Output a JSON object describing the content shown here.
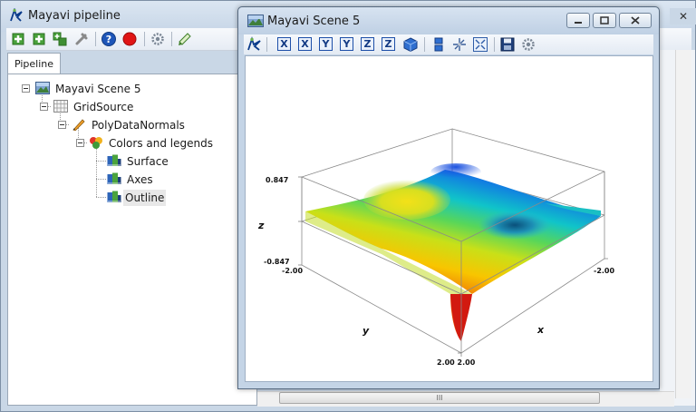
{
  "pipeline_window": {
    "title": "Mayavi pipeline",
    "close_glyph": "✕",
    "toolbar": [
      {
        "name": "add-scene-icon"
      },
      {
        "name": "add-source-icon"
      },
      {
        "name": "add-filter-icon"
      },
      {
        "name": "delete-node-icon"
      },
      {
        "name": "help-icon"
      },
      {
        "name": "record-icon"
      },
      {
        "name": "settings-icon"
      },
      {
        "name": "edit-icon"
      }
    ],
    "tab": "Pipeline",
    "tree": [
      {
        "label": "Mayavi Scene 5",
        "level": 0,
        "icon": "scene-icon"
      },
      {
        "label": "GridSource",
        "level": 1,
        "icon": "grid-source-icon"
      },
      {
        "label": "PolyDataNormals",
        "level": 2,
        "icon": "filter-icon"
      },
      {
        "label": "Colors and legends",
        "level": 3,
        "icon": "colors-legends-icon"
      },
      {
        "label": "Surface",
        "level": 4,
        "icon": "module-icon"
      },
      {
        "label": "Axes",
        "level": 4,
        "icon": "module-icon"
      },
      {
        "label": "Outline",
        "level": 4,
        "icon": "module-icon",
        "selected": true
      }
    ],
    "hscroll_grip": "III"
  },
  "scene_window": {
    "title": "Mayavi Scene 5",
    "toolbar": [
      {
        "name": "mayavi-icon"
      },
      {
        "name": "view-x-plus-button",
        "label": "X"
      },
      {
        "name": "view-x-minus-button",
        "label": "X"
      },
      {
        "name": "view-y-plus-button",
        "label": "Y"
      },
      {
        "name": "view-y-minus-button",
        "label": "Y"
      },
      {
        "name": "view-z-plus-button",
        "label": "Z"
      },
      {
        "name": "view-z-minus-button",
        "label": "Z"
      },
      {
        "name": "isometric-view-icon"
      },
      {
        "name": "parallel-projection-icon"
      },
      {
        "name": "axes-indicator-icon"
      },
      {
        "name": "full-screen-icon"
      },
      {
        "name": "save-icon"
      },
      {
        "name": "configure-icon"
      }
    ],
    "axes": {
      "z_max": "0.847",
      "z_min": "-0.847",
      "z_label": "z",
      "y_label": "y",
      "x_label": "x",
      "y_min": "-2.00",
      "x_min": "-2.00",
      "x_max_y_max": "2.00 2.00"
    }
  }
}
